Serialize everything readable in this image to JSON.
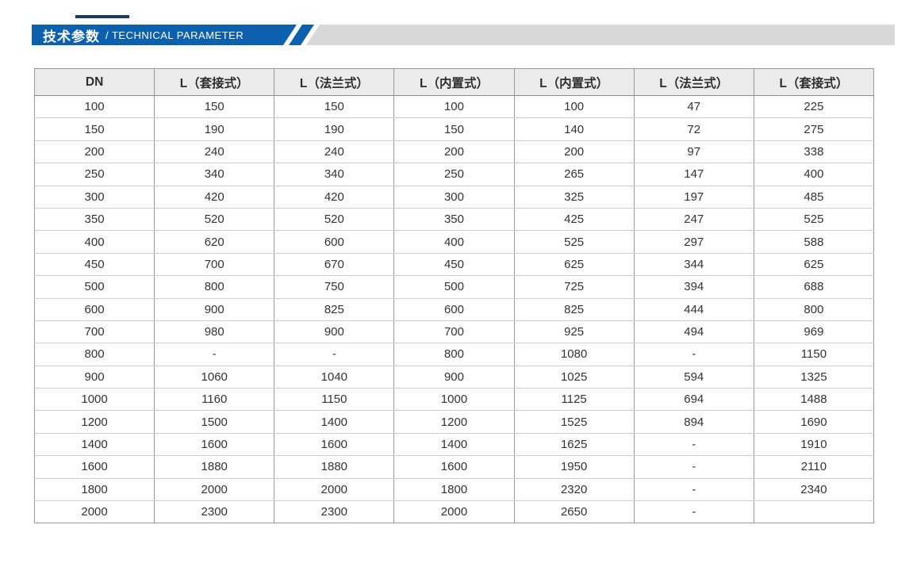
{
  "banner": {
    "title_zh": "技术参数",
    "title_en": "/ TECHNICAL PARAMETER"
  },
  "colors": {
    "banner_blue": "#0c60ae",
    "banner_gray": "#d8d8d8",
    "accent_navy": "#1a3a64",
    "header_bg": "#ebebeb",
    "border_dark": "#9a9a9a",
    "border_light": "#cccccc",
    "text": "#333333"
  },
  "table": {
    "columns": [
      "DN",
      "L（套接式）",
      "L（法兰式）",
      "L（内置式）",
      "L（内置式）",
      "L（法兰式）",
      "L（套接式）"
    ],
    "rows": [
      [
        "100",
        "150",
        "150",
        "100",
        "100",
        "47",
        "225"
      ],
      [
        "150",
        "190",
        "190",
        "150",
        "140",
        "72",
        "275"
      ],
      [
        "200",
        "240",
        "240",
        "200",
        "200",
        "97",
        "338"
      ],
      [
        "250",
        "340",
        "340",
        "250",
        "265",
        "147",
        "400"
      ],
      [
        "300",
        "420",
        "420",
        "300",
        "325",
        "197",
        "485"
      ],
      [
        "350",
        "520",
        "520",
        "350",
        "425",
        "247",
        "525"
      ],
      [
        "400",
        "620",
        "600",
        "400",
        "525",
        "297",
        "588"
      ],
      [
        "450",
        "700",
        "670",
        "450",
        "625",
        "344",
        "625"
      ],
      [
        "500",
        "800",
        "750",
        "500",
        "725",
        "394",
        "688"
      ],
      [
        "600",
        "900",
        "825",
        "600",
        "825",
        "444",
        "800"
      ],
      [
        "700",
        "980",
        "900",
        "700",
        "925",
        "494",
        "969"
      ],
      [
        "800",
        "-",
        "-",
        "800",
        "1080",
        "-",
        "1150"
      ],
      [
        "900",
        "1060",
        "1040",
        "900",
        "1025",
        "594",
        "1325"
      ],
      [
        "1000",
        "1160",
        "1150",
        "1000",
        "1125",
        "694",
        "1488"
      ],
      [
        "1200",
        "1500",
        "1400",
        "1200",
        "1525",
        "894",
        "1690"
      ],
      [
        "1400",
        "1600",
        "1600",
        "1400",
        "1625",
        "-",
        "1910"
      ],
      [
        "1600",
        "1880",
        "1880",
        "1600",
        "1950",
        "-",
        "2110"
      ],
      [
        "1800",
        "2000",
        "2000",
        "1800",
        "2320",
        "-",
        "2340"
      ],
      [
        "2000",
        "2300",
        "2300",
        "2000",
        "2650",
        "-",
        ""
      ]
    ]
  }
}
